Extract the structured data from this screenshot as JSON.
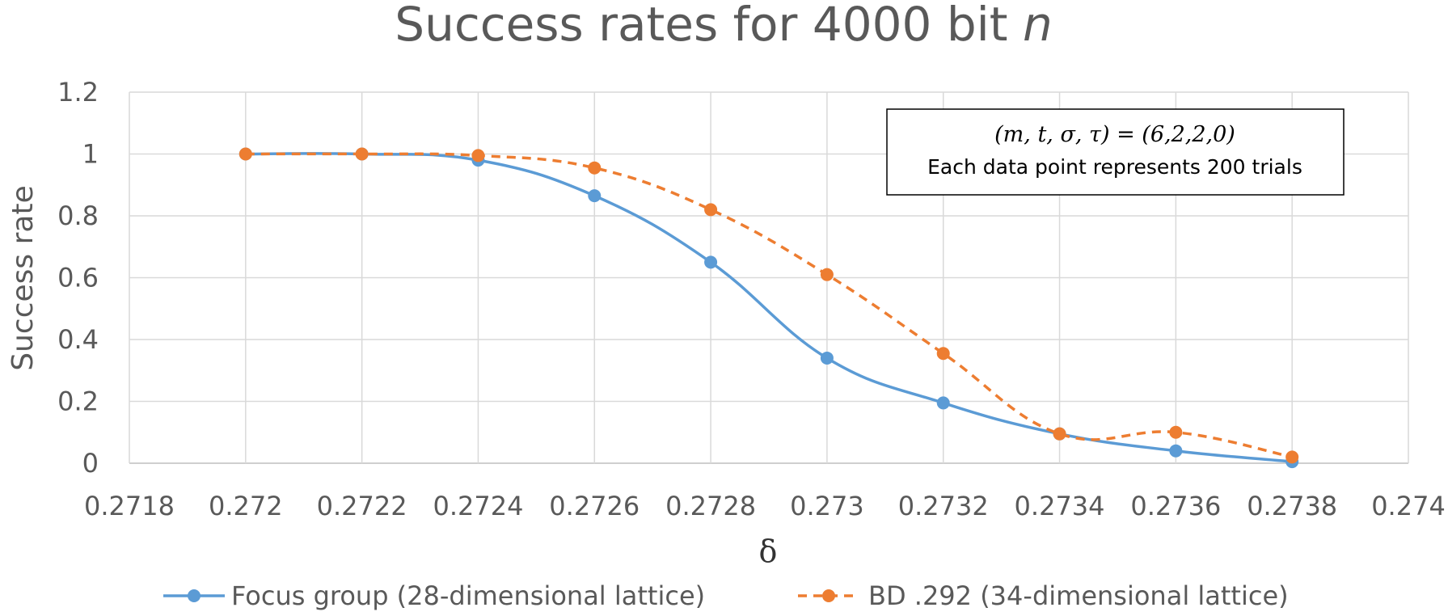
{
  "chart_data": {
    "type": "line",
    "title": "Success rates for 4000 bit",
    "title_var": "n",
    "xlabel": "δ",
    "ylabel": "Success rate",
    "xlim": [
      0.2718,
      0.274
    ],
    "ylim": [
      0,
      1.2
    ],
    "x_ticks": [
      "0.2718",
      "0.272",
      "0.2722",
      "0.2724",
      "0.2726",
      "0.2728",
      "0.273",
      "0.2732",
      "0.2734",
      "0.2736",
      "0.2738",
      "0.274"
    ],
    "y_ticks": [
      "0",
      "0.2",
      "0.4",
      "0.6",
      "0.8",
      "1",
      "1.2"
    ],
    "grid": true,
    "legend_position": "bottom",
    "annotation": {
      "equation": "(m, t, σ, τ) = (6,2,2,0)",
      "text": "Each data point represents 200 trials"
    },
    "series": [
      {
        "name": "Focus group (28-dimensional lattice)",
        "color": "#5B9BD5",
        "style": "solid",
        "x": [
          0.272,
          0.2722,
          0.2724,
          0.2726,
          0.2728,
          0.273,
          0.2732,
          0.2734,
          0.2736,
          0.2738
        ],
        "values": [
          1.0,
          1.0,
          0.98,
          0.865,
          0.65,
          0.34,
          0.195,
          0.095,
          0.04,
          0.005
        ]
      },
      {
        "name": "BD .292 (34-dimensional lattice)",
        "color": "#ED7D31",
        "style": "dashed",
        "x": [
          0.272,
          0.2722,
          0.2724,
          0.2726,
          0.2728,
          0.273,
          0.2732,
          0.2734,
          0.2736,
          0.2738
        ],
        "values": [
          1.0,
          1.0,
          0.995,
          0.955,
          0.82,
          0.61,
          0.355,
          0.095,
          0.1,
          0.02
        ]
      }
    ]
  }
}
